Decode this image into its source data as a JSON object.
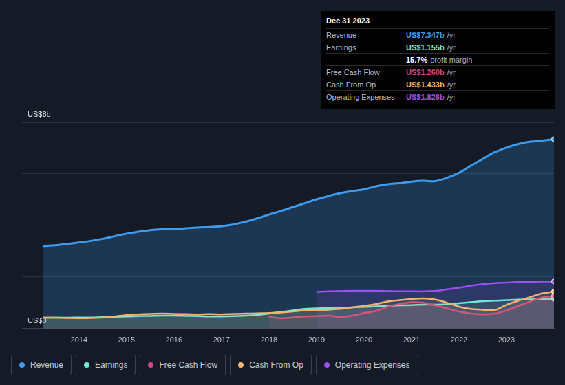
{
  "chart_data": {
    "type": "line",
    "x": [
      2013.25,
      2013.5,
      2013.75,
      2014,
      2014.25,
      2014.5,
      2014.75,
      2015,
      2015.25,
      2015.5,
      2015.75,
      2016,
      2016.25,
      2016.5,
      2016.75,
      2017,
      2017.25,
      2017.5,
      2017.75,
      2018,
      2018.25,
      2018.5,
      2018.75,
      2019,
      2019.25,
      2019.5,
      2019.75,
      2020,
      2020.25,
      2020.5,
      2020.75,
      2021,
      2021.25,
      2021.5,
      2021.75,
      2022,
      2022.25,
      2022.5,
      2022.75,
      2023,
      2023.25,
      2023.5,
      2023.75,
      2024
    ],
    "xlim": [
      2012.8,
      2024
    ],
    "xticks": [
      2014,
      2015,
      2016,
      2017,
      2018,
      2019,
      2020,
      2021,
      2022,
      2023
    ],
    "ylim": [
      0,
      8
    ],
    "yticks": [
      {
        "value": 0,
        "label": "US$0"
      },
      {
        "value": 2,
        "label": null
      },
      {
        "value": 4,
        "label": null
      },
      {
        "value": 6,
        "label": null
      },
      {
        "value": 8,
        "label": "US$8b"
      }
    ],
    "grid": true,
    "legend": "bottom",
    "series": [
      {
        "name": "Revenue",
        "color": "#3d9cf0",
        "values": [
          3.2,
          3.23,
          3.28,
          3.34,
          3.4,
          3.48,
          3.58,
          3.68,
          3.76,
          3.82,
          3.85,
          3.86,
          3.89,
          3.92,
          3.94,
          3.97,
          4.04,
          4.14,
          4.27,
          4.42,
          4.56,
          4.71,
          4.86,
          5.01,
          5.14,
          5.25,
          5.33,
          5.4,
          5.52,
          5.6,
          5.64,
          5.7,
          5.73,
          5.72,
          5.85,
          6.04,
          6.32,
          6.58,
          6.84,
          7.02,
          7.16,
          7.25,
          7.29,
          7.347
        ]
      },
      {
        "name": "Earnings",
        "color": "#74e8d6",
        "values": [
          0.42,
          0.42,
          0.42,
          0.43,
          0.43,
          0.44,
          0.45,
          0.47,
          0.48,
          0.49,
          0.5,
          0.5,
          0.49,
          0.48,
          0.47,
          0.47,
          0.48,
          0.5,
          0.53,
          0.58,
          0.64,
          0.7,
          0.76,
          0.78,
          0.8,
          0.81,
          0.82,
          0.84,
          0.86,
          0.88,
          0.9,
          0.91,
          0.93,
          0.93,
          0.94,
          0.98,
          1.02,
          1.06,
          1.08,
          1.1,
          1.12,
          1.13,
          1.14,
          1.155
        ]
      },
      {
        "name": "Free Cash Flow",
        "color": "#d4487e",
        "values": [
          null,
          null,
          null,
          null,
          null,
          null,
          null,
          null,
          null,
          null,
          null,
          null,
          null,
          null,
          null,
          null,
          null,
          null,
          null,
          0.45,
          0.4,
          0.43,
          0.47,
          0.48,
          0.5,
          0.45,
          0.5,
          0.6,
          0.68,
          0.85,
          0.95,
          1.02,
          1.0,
          0.9,
          0.78,
          0.66,
          0.58,
          0.55,
          0.58,
          0.7,
          0.88,
          1.05,
          1.2,
          1.26
        ]
      },
      {
        "name": "Cash From Op",
        "color": "#f2b46e",
        "values": [
          0.42,
          0.42,
          0.41,
          0.4,
          0.41,
          0.43,
          0.47,
          0.52,
          0.55,
          0.57,
          0.58,
          0.57,
          0.56,
          0.55,
          0.56,
          0.55,
          0.57,
          0.58,
          0.59,
          0.6,
          0.62,
          0.66,
          0.7,
          0.72,
          0.73,
          0.76,
          0.82,
          0.88,
          0.95,
          1.05,
          1.1,
          1.14,
          1.17,
          1.12,
          1.0,
          0.85,
          0.76,
          0.73,
          0.72,
          0.92,
          1.08,
          1.22,
          1.36,
          1.433
        ]
      },
      {
        "name": "Operating Expenses",
        "color": "#9d4ef5",
        "values": [
          null,
          null,
          null,
          null,
          null,
          null,
          null,
          null,
          null,
          null,
          null,
          null,
          null,
          null,
          null,
          null,
          null,
          null,
          null,
          null,
          null,
          null,
          null,
          1.42,
          1.44,
          1.45,
          1.46,
          1.46,
          1.46,
          1.45,
          1.44,
          1.44,
          1.44,
          1.46,
          1.52,
          1.58,
          1.66,
          1.72,
          1.76,
          1.78,
          1.8,
          1.81,
          1.82,
          1.826
        ]
      }
    ],
    "annotation": {
      "title": "Dec 31 2023",
      "rows": [
        {
          "name": "Revenue",
          "value": "US$7.347b",
          "unit": "/yr",
          "color": "#3d9cf0"
        },
        {
          "name": "Earnings",
          "value": "US$1.155b",
          "unit": "/yr",
          "color": "#74e8d6"
        },
        {
          "name": null,
          "value": "15.7%",
          "unit": "profit margin",
          "color": "#ffffff"
        },
        {
          "name": "Free Cash Flow",
          "value": "US$1.260b",
          "unit": "/yr",
          "color": "#d4487e"
        },
        {
          "name": "Cash From Op",
          "value": "US$1.433b",
          "unit": "/yr",
          "color": "#f2b46e"
        },
        {
          "name": "Operating Expenses",
          "value": "US$1.826b",
          "unit": "/yr",
          "color": "#9d4ef5"
        }
      ]
    }
  }
}
